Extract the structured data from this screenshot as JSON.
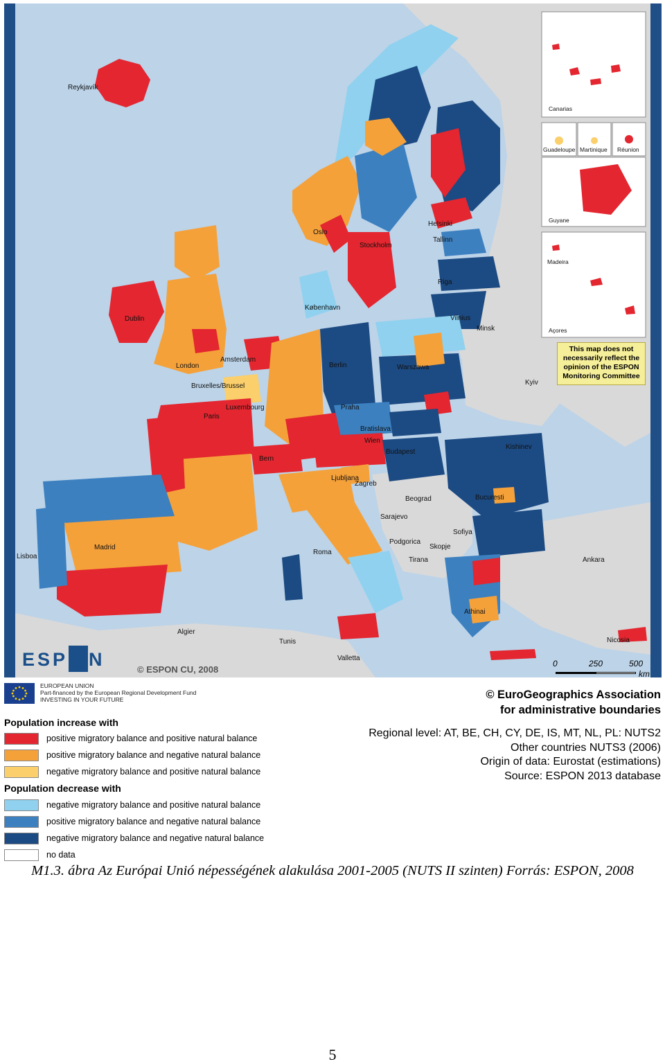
{
  "map": {
    "cities": [
      "Reykjavík",
      "Dublin",
      "London",
      "Amsterdam",
      "Bruxelles/Brussel",
      "Paris",
      "Luxembourg",
      "Oslo",
      "Stockholm",
      "Helsinki",
      "Tallinn",
      "Riga",
      "Vilnius",
      "Minsk",
      "København",
      "Berlin",
      "Warszawa",
      "Praha",
      "Bratislava",
      "Wien",
      "Budapest",
      "Bern",
      "Ljubljana",
      "Zagreb",
      "Beograd",
      "Sarajevo",
      "Podgorica",
      "Skopje",
      "Sofiya",
      "Tirana",
      "Bucuresti",
      "Kishinev",
      "Kyiv",
      "Roma",
      "Madrid",
      "Lisboa",
      "Algier",
      "Tunis",
      "Valletta",
      "Athinai",
      "Ankara",
      "Nicosia"
    ],
    "insets": [
      "Canarias",
      "Guadeloupe",
      "Martinique",
      "Réunion",
      "Guyane",
      "Madeira",
      "Açores"
    ],
    "disclaimer": "This map does not necessarily reflect the opinion of the ESPON Monitoring Committee",
    "logo": "ESPON",
    "copyright": "© ESPON CU, 2008",
    "scale_ticks": [
      "0",
      "250",
      "500"
    ],
    "scale_unit": "km",
    "colors": {
      "pos_mig_pos_nat": "#e3262f",
      "pos_mig_neg_nat": "#f5a13a",
      "neg_mig_pos_nat_inc": "#fbcf6b",
      "neg_mig_pos_nat_dec": "#8fd1ef",
      "pos_mig_neg_nat_dec": "#3c80c0",
      "neg_mig_neg_nat": "#1c4a82",
      "no_data": "#ffffff",
      "non_eu": "#d9d9d9",
      "sea": "#bcd3e8"
    }
  },
  "eu_block": {
    "line1": "EUROPEAN UNION",
    "line2": "Part-financed by the European Regional Development Fund",
    "line3": "INVESTING IN YOUR FUTURE"
  },
  "legend": {
    "increase_heading": "Population increase with",
    "decrease_heading": "Population decrease with",
    "items": [
      {
        "label": "positive migratory balance and positive natural balance",
        "color": "#e3262f"
      },
      {
        "label": "positive migratory balance and negative natural balance",
        "color": "#f5a13a"
      },
      {
        "label": "negative migratory balance and positive natural balance",
        "color": "#fbcf6b"
      },
      {
        "label": "negative migratory balance and positive natural balance",
        "color": "#8fd1ef"
      },
      {
        "label": "positive migratory balance and negative natural balance",
        "color": "#3c80c0"
      },
      {
        "label": "negative migratory balance and negative natural balance",
        "color": "#1c4a82"
      },
      {
        "label": "no data",
        "color": "#ffffff"
      }
    ]
  },
  "info": {
    "copyright_line1": "© EuroGeographics Association",
    "copyright_line2": "for administrative boundaries",
    "regional_level": "Regional level: AT, BE, CH, CY, DE, IS, MT, NL, PL: NUTS2",
    "other_countries": "Other countries NUTS3 (2006)",
    "origin": "Origin of data: Eurostat (estimations)",
    "source": "Source: ESPON 2013 database"
  },
  "caption": "M1.3. ábra Az Európai Unió népességének alakulása 2001-2005 (NUTS II szinten) Forrás: ESPON, 2008",
  "page_number": "5"
}
